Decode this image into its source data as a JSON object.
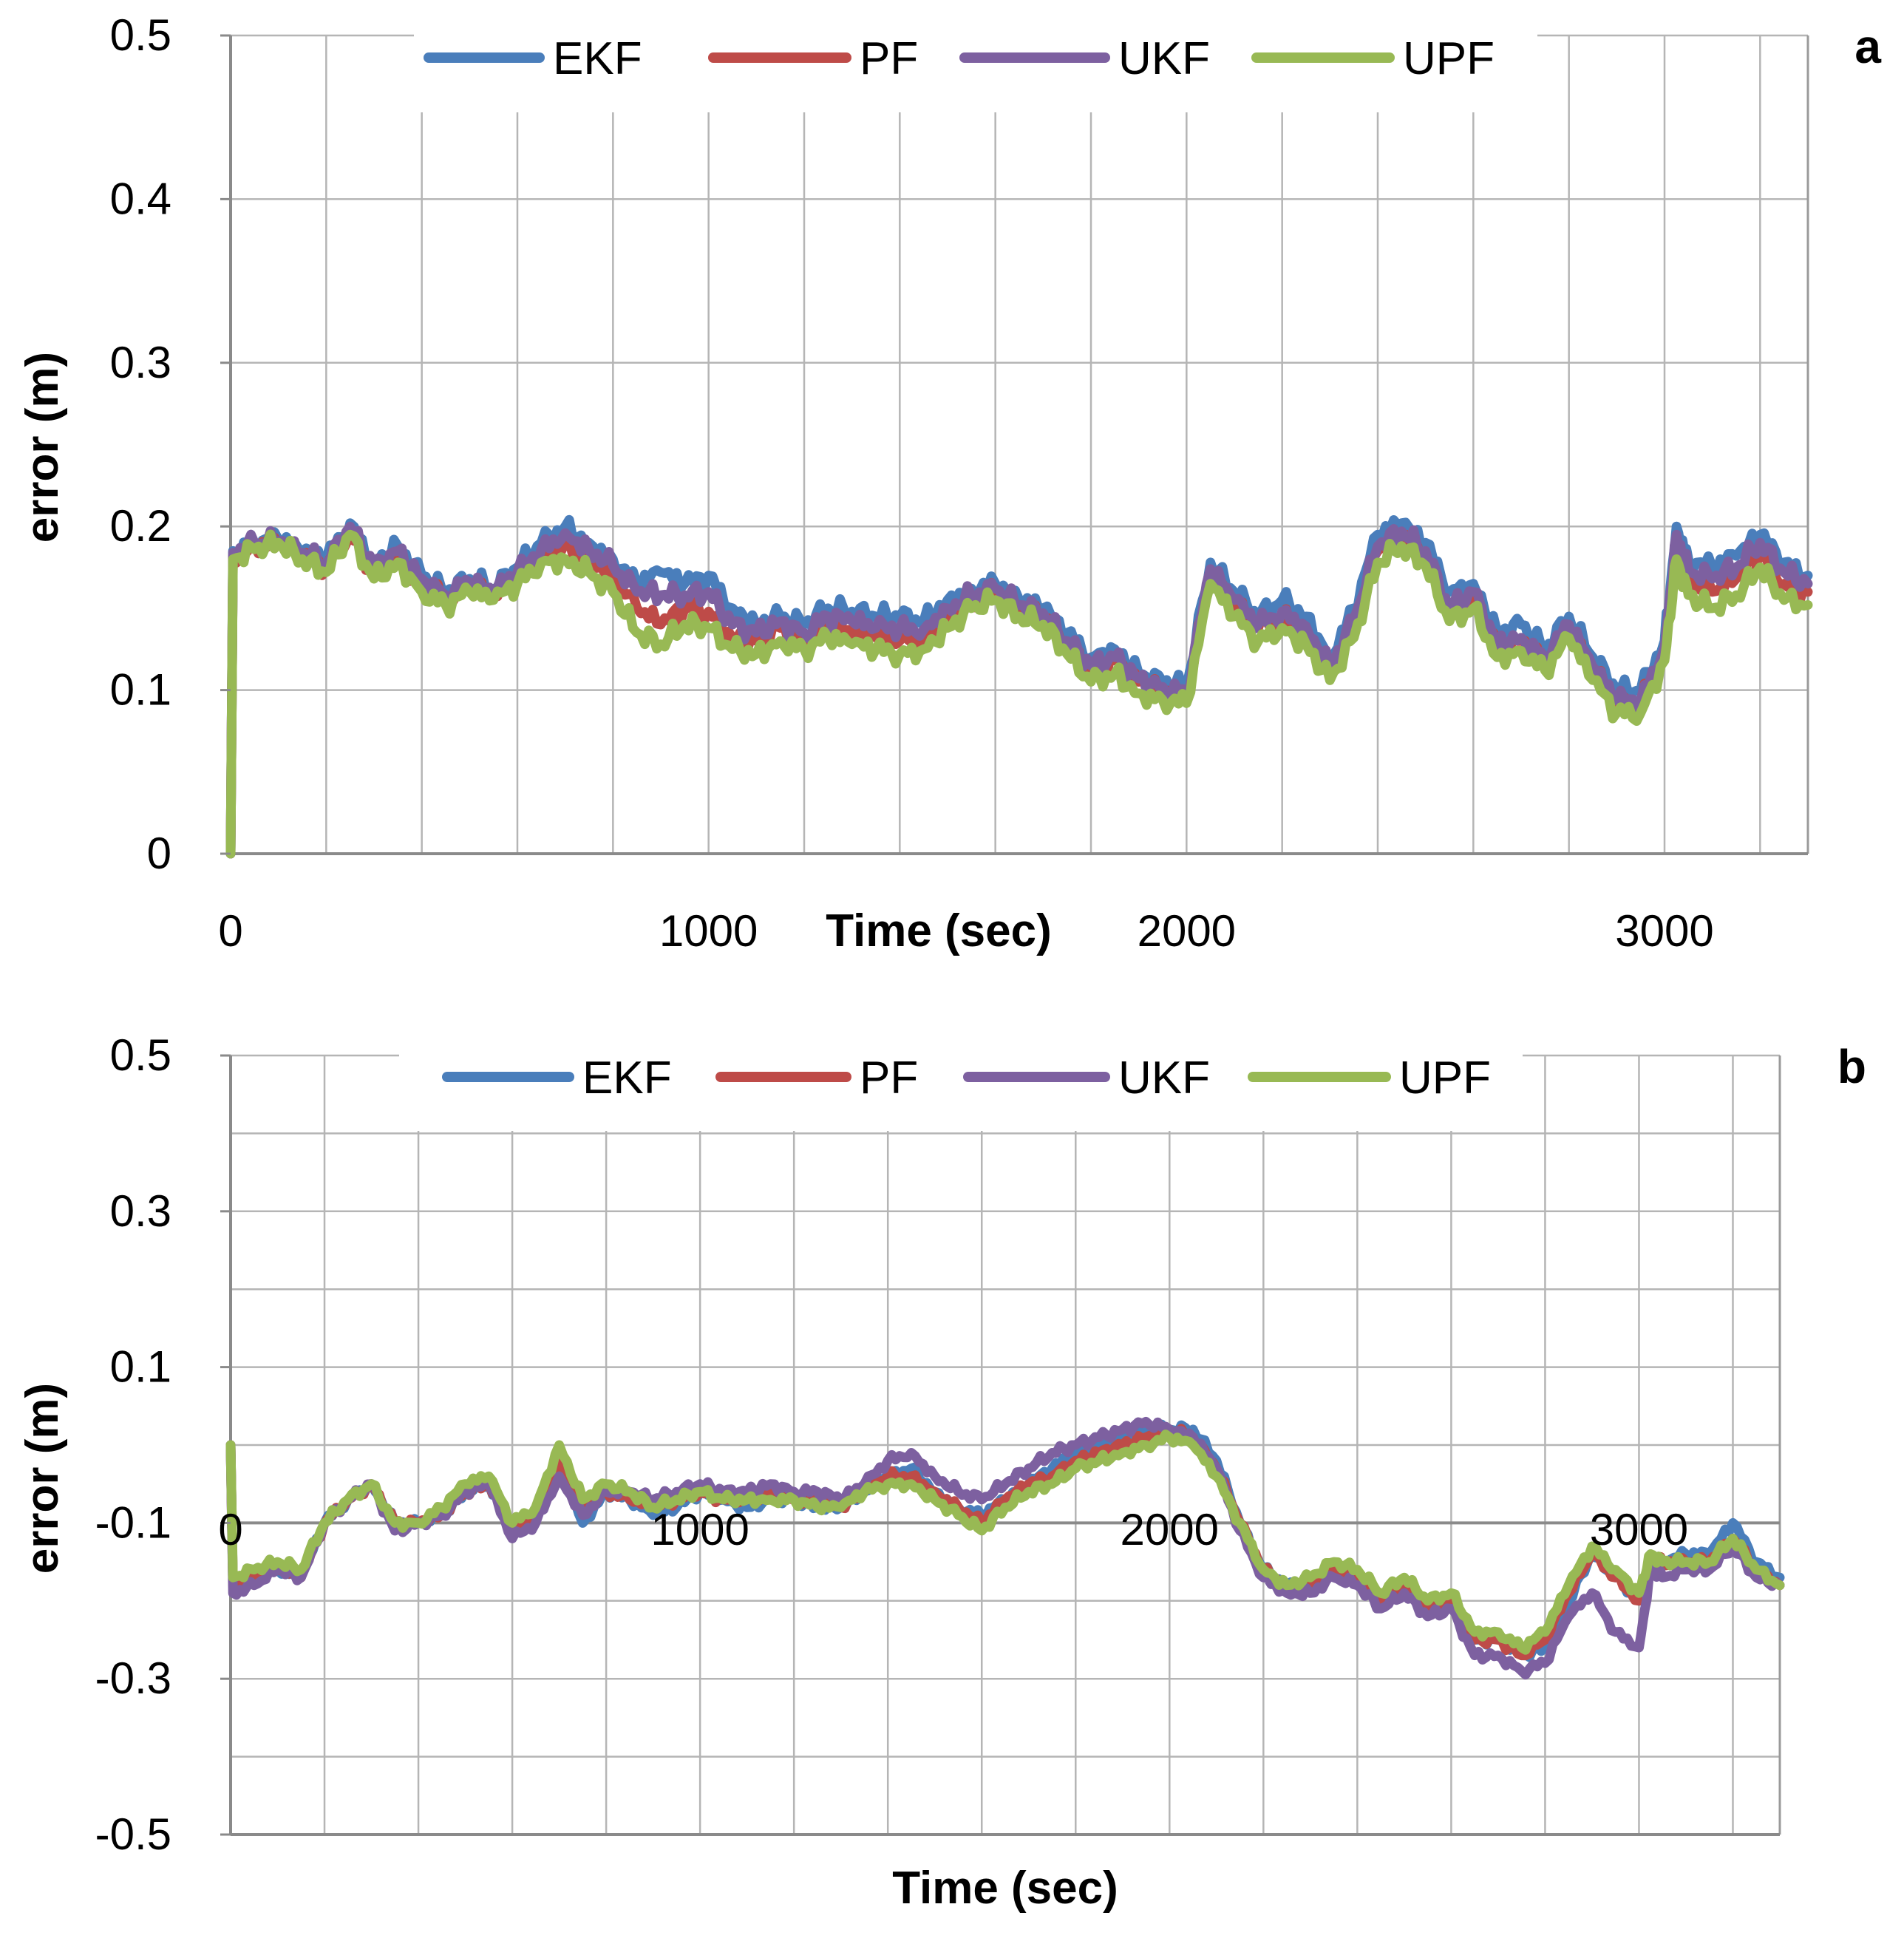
{
  "panels": [
    {
      "label": "a",
      "xlabel": "Time (sec)",
      "ylabel": "error (m)",
      "legend": [
        "EKF",
        "PF",
        "UKF",
        "UPF"
      ]
    },
    {
      "label": "b",
      "xlabel": "Time (sec)",
      "ylabel": "error (m)",
      "legend": [
        "EKF",
        "PF",
        "UKF",
        "UPF"
      ]
    }
  ],
  "chart_data": [
    {
      "type": "line",
      "title": "a",
      "xlabel": "Time (sec)",
      "ylabel": "error (m)",
      "xlim": [
        0,
        3300
      ],
      "ylim": [
        0,
        0.5
      ],
      "x_ticks": [
        0,
        1000,
        2000,
        3000
      ],
      "x_tick_labels": [
        "0",
        "1000",
        "2000",
        "3000"
      ],
      "x_minor_step": 200,
      "y_ticks": [
        0,
        0.1,
        0.2,
        0.3,
        0.4,
        0.5
      ],
      "y_tick_labels": [
        "0",
        "0.1",
        "0.2",
        "0.3",
        "0.4",
        "0.5"
      ],
      "grid": true,
      "legend_position": "top",
      "x": [
        0,
        5,
        50,
        100,
        150,
        200,
        250,
        300,
        350,
        400,
        450,
        500,
        550,
        600,
        650,
        700,
        750,
        800,
        850,
        900,
        950,
        1000,
        1050,
        1100,
        1150,
        1200,
        1250,
        1300,
        1350,
        1400,
        1450,
        1500,
        1550,
        1600,
        1650,
        1700,
        1750,
        1800,
        1850,
        1900,
        1950,
        2000,
        2050,
        2100,
        2150,
        2200,
        2250,
        2300,
        2350,
        2400,
        2450,
        2500,
        2550,
        2600,
        2650,
        2700,
        2750,
        2800,
        2850,
        2900,
        2950,
        3000,
        3025,
        3050,
        3100,
        3150,
        3200,
        3250,
        3300
      ],
      "series": [
        {
          "name": "EKF",
          "color": "#4a7ebb",
          "values": [
            0,
            0.185,
            0.19,
            0.192,
            0.185,
            0.18,
            0.202,
            0.178,
            0.188,
            0.17,
            0.16,
            0.168,
            0.162,
            0.175,
            0.19,
            0.2,
            0.19,
            0.18,
            0.165,
            0.172,
            0.165,
            0.17,
            0.15,
            0.14,
            0.145,
            0.14,
            0.15,
            0.148,
            0.145,
            0.145,
            0.142,
            0.155,
            0.162,
            0.165,
            0.155,
            0.15,
            0.135,
            0.12,
            0.125,
            0.11,
            0.105,
            0.102,
            0.178,
            0.16,
            0.145,
            0.155,
            0.145,
            0.12,
            0.15,
            0.195,
            0.202,
            0.19,
            0.16,
            0.165,
            0.135,
            0.14,
            0.125,
            0.145,
            0.12,
            0.1,
            0.1,
            0.13,
            0.2,
            0.18,
            0.175,
            0.182,
            0.195,
            0.178,
            0.17
          ]
        },
        {
          "name": "PF",
          "color": "#be4b48",
          "values": [
            0,
            0.182,
            0.188,
            0.19,
            0.182,
            0.176,
            0.196,
            0.172,
            0.18,
            0.165,
            0.157,
            0.164,
            0.158,
            0.17,
            0.182,
            0.19,
            0.18,
            0.17,
            0.15,
            0.14,
            0.15,
            0.148,
            0.132,
            0.13,
            0.138,
            0.13,
            0.14,
            0.135,
            0.132,
            0.13,
            0.133,
            0.145,
            0.155,
            0.16,
            0.15,
            0.145,
            0.128,
            0.112,
            0.118,
            0.105,
            0.1,
            0.096,
            0.172,
            0.152,
            0.138,
            0.145,
            0.136,
            0.112,
            0.14,
            0.185,
            0.195,
            0.182,
            0.148,
            0.158,
            0.126,
            0.13,
            0.118,
            0.138,
            0.112,
            0.092,
            0.092,
            0.124,
            0.19,
            0.168,
            0.16,
            0.168,
            0.185,
            0.165,
            0.16
          ]
        },
        {
          "name": "UKF",
          "color": "#7d60a0",
          "values": [
            0,
            0.184,
            0.19,
            0.191,
            0.184,
            0.178,
            0.2,
            0.175,
            0.185,
            0.168,
            0.158,
            0.166,
            0.16,
            0.172,
            0.186,
            0.196,
            0.186,
            0.176,
            0.16,
            0.158,
            0.158,
            0.16,
            0.14,
            0.135,
            0.142,
            0.135,
            0.145,
            0.142,
            0.138,
            0.138,
            0.137,
            0.15,
            0.158,
            0.162,
            0.152,
            0.147,
            0.13,
            0.115,
            0.12,
            0.107,
            0.102,
            0.098,
            0.174,
            0.155,
            0.14,
            0.148,
            0.139,
            0.114,
            0.143,
            0.188,
            0.197,
            0.185,
            0.15,
            0.16,
            0.128,
            0.132,
            0.12,
            0.14,
            0.114,
            0.094,
            0.094,
            0.126,
            0.195,
            0.173,
            0.168,
            0.175,
            0.19,
            0.172,
            0.165
          ]
        },
        {
          "name": "UPF",
          "color": "#98b954",
          "values": [
            0,
            0.18,
            0.186,
            0.19,
            0.18,
            0.172,
            0.195,
            0.168,
            0.178,
            0.16,
            0.152,
            0.16,
            0.155,
            0.165,
            0.178,
            0.18,
            0.172,
            0.16,
            0.135,
            0.128,
            0.14,
            0.138,
            0.125,
            0.122,
            0.13,
            0.125,
            0.132,
            0.128,
            0.125,
            0.122,
            0.125,
            0.138,
            0.15,
            0.155,
            0.145,
            0.14,
            0.122,
            0.105,
            0.11,
            0.098,
            0.094,
            0.092,
            0.165,
            0.145,
            0.13,
            0.138,
            0.128,
            0.106,
            0.132,
            0.178,
            0.188,
            0.176,
            0.142,
            0.15,
            0.12,
            0.124,
            0.112,
            0.132,
            0.106,
            0.086,
            0.086,
            0.118,
            0.18,
            0.158,
            0.15,
            0.158,
            0.175,
            0.155,
            0.152
          ]
        }
      ]
    },
    {
      "type": "line",
      "title": "b",
      "xlabel": "Time (sec)",
      "ylabel": "error (m)",
      "xlim": [
        0,
        3300
      ],
      "ylim": [
        -0.5,
        0.5
      ],
      "x_ticks": [
        0,
        1000,
        2000,
        3000
      ],
      "x_tick_labels": [
        "0",
        "1000",
        "2000",
        "3000"
      ],
      "x_axis_at": -0.1,
      "x_minor_step": 200,
      "y_ticks": [
        -0.5,
        -0.3,
        -0.1,
        0.1,
        0.3,
        0.5
      ],
      "y_tick_labels": [
        "-0.5",
        "-0.3",
        "-0.1",
        "0.1",
        "0.3",
        "0.5"
      ],
      "y_minor_step": 0.1,
      "grid": true,
      "legend_position": "top",
      "x": [
        0,
        5,
        50,
        100,
        150,
        200,
        250,
        300,
        350,
        400,
        450,
        500,
        550,
        600,
        650,
        700,
        750,
        800,
        850,
        900,
        950,
        1000,
        1050,
        1100,
        1150,
        1200,
        1250,
        1300,
        1350,
        1400,
        1450,
        1500,
        1550,
        1600,
        1650,
        1700,
        1750,
        1800,
        1850,
        1900,
        1950,
        2000,
        2050,
        2100,
        2150,
        2200,
        2250,
        2300,
        2350,
        2400,
        2450,
        2500,
        2550,
        2600,
        2650,
        2700,
        2750,
        2800,
        2850,
        2900,
        2950,
        3000,
        3025,
        3050,
        3100,
        3150,
        3200,
        3250,
        3300
      ],
      "series": [
        {
          "name": "EKF",
          "color": "#4a7ebb",
          "values": [
            0.0,
            -0.18,
            -0.17,
            -0.16,
            -0.17,
            -0.1,
            -0.07,
            -0.05,
            -0.1,
            -0.1,
            -0.09,
            -0.06,
            -0.05,
            -0.11,
            -0.09,
            -0.02,
            -0.1,
            -0.06,
            -0.07,
            -0.09,
            -0.08,
            -0.06,
            -0.07,
            -0.08,
            -0.07,
            -0.07,
            -0.08,
            -0.08,
            -0.06,
            -0.04,
            -0.03,
            -0.06,
            -0.08,
            -0.09,
            -0.07,
            -0.05,
            -0.03,
            -0.01,
            0.0,
            0.01,
            0.02,
            0.02,
            0.02,
            -0.02,
            -0.1,
            -0.16,
            -0.18,
            -0.18,
            -0.16,
            -0.17,
            -0.2,
            -0.18,
            -0.21,
            -0.2,
            -0.25,
            -0.25,
            -0.27,
            -0.26,
            -0.2,
            -0.14,
            -0.17,
            -0.2,
            -0.14,
            -0.15,
            -0.14,
            -0.14,
            -0.1,
            -0.15,
            -0.17
          ]
        },
        {
          "name": "PF",
          "color": "#be4b48",
          "values": [
            0.0,
            -0.18,
            -0.17,
            -0.16,
            -0.17,
            -0.1,
            -0.07,
            -0.05,
            -0.1,
            -0.1,
            -0.09,
            -0.06,
            -0.05,
            -0.11,
            -0.09,
            -0.02,
            -0.08,
            -0.06,
            -0.07,
            -0.08,
            -0.07,
            -0.06,
            -0.07,
            -0.07,
            -0.06,
            -0.07,
            -0.07,
            -0.08,
            -0.06,
            -0.04,
            -0.04,
            -0.06,
            -0.08,
            -0.1,
            -0.07,
            -0.05,
            -0.04,
            -0.02,
            -0.01,
            0.0,
            0.01,
            0.02,
            0.01,
            -0.03,
            -0.1,
            -0.16,
            -0.18,
            -0.18,
            -0.16,
            -0.17,
            -0.2,
            -0.18,
            -0.21,
            -0.2,
            -0.25,
            -0.25,
            -0.27,
            -0.25,
            -0.19,
            -0.14,
            -0.17,
            -0.2,
            -0.15,
            -0.15,
            -0.15,
            -0.15,
            -0.12,
            -0.16,
            -0.18
          ]
        },
        {
          "name": "UKF",
          "color": "#7d60a0",
          "values": [
            0.0,
            -0.19,
            -0.18,
            -0.16,
            -0.17,
            -0.1,
            -0.07,
            -0.05,
            -0.11,
            -0.1,
            -0.09,
            -0.06,
            -0.05,
            -0.12,
            -0.1,
            -0.04,
            -0.09,
            -0.06,
            -0.06,
            -0.07,
            -0.06,
            -0.05,
            -0.06,
            -0.06,
            -0.05,
            -0.06,
            -0.06,
            -0.07,
            -0.05,
            -0.02,
            -0.01,
            -0.04,
            -0.06,
            -0.07,
            -0.05,
            -0.03,
            -0.01,
            0.0,
            0.01,
            0.02,
            0.03,
            0.02,
            0.01,
            -0.03,
            -0.11,
            -0.17,
            -0.19,
            -0.19,
            -0.17,
            -0.18,
            -0.21,
            -0.19,
            -0.22,
            -0.21,
            -0.27,
            -0.27,
            -0.29,
            -0.28,
            -0.22,
            -0.19,
            -0.24,
            -0.26,
            -0.16,
            -0.17,
            -0.16,
            -0.16,
            -0.13,
            -0.17,
            -0.18
          ]
        },
        {
          "name": "UPF",
          "color": "#98b954",
          "values": [
            0.0,
            -0.17,
            -0.16,
            -0.15,
            -0.16,
            -0.1,
            -0.07,
            -0.05,
            -0.1,
            -0.1,
            -0.08,
            -0.05,
            -0.04,
            -0.1,
            -0.08,
            0.0,
            -0.07,
            -0.05,
            -0.06,
            -0.08,
            -0.07,
            -0.06,
            -0.07,
            -0.07,
            -0.07,
            -0.07,
            -0.08,
            -0.08,
            -0.06,
            -0.05,
            -0.05,
            -0.07,
            -0.09,
            -0.11,
            -0.08,
            -0.06,
            -0.05,
            -0.03,
            -0.02,
            -0.01,
            0.0,
            0.01,
            0.0,
            -0.04,
            -0.1,
            -0.16,
            -0.18,
            -0.17,
            -0.15,
            -0.16,
            -0.19,
            -0.17,
            -0.2,
            -0.19,
            -0.24,
            -0.24,
            -0.26,
            -0.24,
            -0.18,
            -0.13,
            -0.16,
            -0.19,
            -0.14,
            -0.15,
            -0.15,
            -0.15,
            -0.12,
            -0.16,
            -0.18
          ]
        }
      ]
    }
  ]
}
